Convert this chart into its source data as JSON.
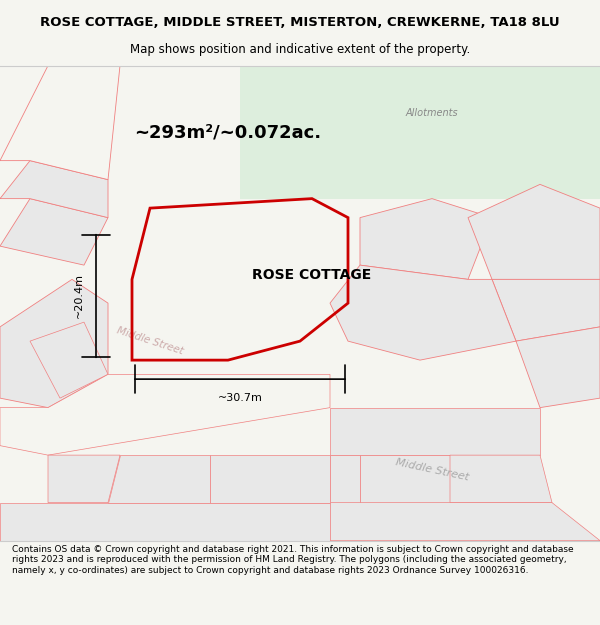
{
  "title": "ROSE COTTAGE, MIDDLE STREET, MISTERTON, CREWKERNE, TA18 8LU",
  "subtitle": "Map shows position and indicative extent of the property.",
  "area_text": "~293m²/~0.072ac.",
  "width_label": "~30.7m",
  "height_label": "~20.4m",
  "property_label": "ROSE COTTAGE",
  "allotments_label": "Allotments",
  "street_label_1": "Middle Street",
  "street_label_2": "Middle Street",
  "footer": "Contains OS data © Crown copyright and database right 2021. This information is subject to Crown copyright and database rights 2023 and is reproduced with the permission of HM Land Registry. The polygons (including the associated geometry, namely x, y co-ordinates) are subject to Crown copyright and database rights 2023 Ordnance Survey 100026316.",
  "bg_color": "#f5f5f0",
  "map_bg": "#ffffff",
  "green_area_color": "#ddeedd",
  "property_outline_color": "#cc0000",
  "other_outline_color": "#f08080",
  "gray_fill": "#e8e8e8",
  "footer_bg": "#ffffff"
}
